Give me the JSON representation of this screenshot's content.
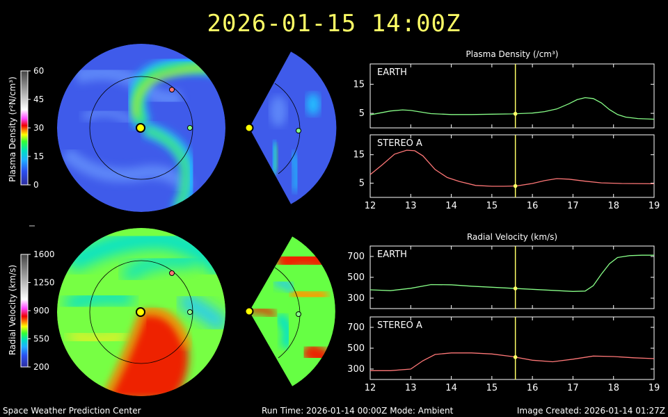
{
  "title": "2026-01-15 14:00Z",
  "footer": {
    "left": "Space Weather Prediction Center",
    "middle": "Run Time: 2026-01-14 00:00Z  Mode: Ambient",
    "right": "Image Created: 2026-01-14 01:27Z"
  },
  "colors": {
    "title": "#ffff66",
    "earth_line": "#88ff88",
    "stereo_line": "#ff7777",
    "cursor": "#ffff66"
  },
  "density_bar": {
    "label": "Plasma Density (r²N/cm³)",
    "ticks": [
      "60",
      "45",
      "30",
      "15",
      "0"
    ]
  },
  "velocity_bar": {
    "label": "Radial Velocity (km/s)",
    "ticks": [
      "1600",
      "1250",
      "900",
      "550",
      "200"
    ]
  },
  "chart_data": [
    {
      "type": "line",
      "title": "Plasma Density (/cm³)",
      "panel": "EARTH",
      "x_ticks": [
        "12",
        "13",
        "14",
        "15",
        "16",
        "17",
        "18",
        "19"
      ],
      "y_ticks": [
        "15",
        "5"
      ],
      "xlim": [
        12,
        19
      ],
      "ylim": [
        0,
        22
      ],
      "cursor_x": 15.58,
      "x": [
        12.0,
        12.5,
        12.8,
        13.0,
        13.5,
        14.0,
        14.5,
        15.0,
        15.5,
        16.0,
        16.3,
        16.6,
        16.9,
        17.1,
        17.3,
        17.5,
        17.7,
        17.9,
        18.1,
        18.3,
        18.6,
        19.0
      ],
      "values": [
        4.5,
        5.8,
        6.2,
        6.0,
        4.9,
        4.6,
        4.6,
        4.7,
        4.8,
        5.1,
        5.6,
        6.5,
        8.3,
        9.7,
        10.4,
        10.1,
        8.6,
        6.3,
        4.6,
        3.7,
        3.2,
        3.0
      ]
    },
    {
      "type": "line",
      "panel": "STEREO A",
      "x_ticks": [
        "12",
        "13",
        "14",
        "15",
        "16",
        "17",
        "18",
        "19"
      ],
      "y_ticks": [
        "15",
        "5"
      ],
      "xlim": [
        12,
        19
      ],
      "ylim": [
        0,
        22
      ],
      "cursor_x": 15.58,
      "x": [
        12.0,
        12.3,
        12.6,
        12.9,
        13.1,
        13.3,
        13.6,
        13.9,
        14.2,
        14.6,
        15.0,
        15.3,
        15.6,
        16.0,
        16.3,
        16.6,
        16.9,
        17.3,
        17.7,
        18.2,
        19.0
      ],
      "values": [
        8.0,
        11.5,
        15.2,
        16.6,
        16.4,
        14.6,
        9.8,
        7.0,
        5.6,
        4.2,
        3.9,
        3.9,
        4.0,
        4.9,
        5.9,
        6.6,
        6.4,
        5.7,
        5.1,
        4.9,
        4.8
      ]
    },
    {
      "type": "line",
      "title": "Radial Velocity (km/s)",
      "panel": "EARTH",
      "x_ticks": [
        "12",
        "13",
        "14",
        "15",
        "16",
        "17",
        "18",
        "19"
      ],
      "y_ticks": [
        "700",
        "500",
        "300"
      ],
      "xlim": [
        12,
        19
      ],
      "ylim": [
        200,
        800
      ],
      "cursor_x": 15.58,
      "x": [
        12.0,
        12.5,
        13.0,
        13.5,
        14.0,
        14.5,
        15.0,
        15.5,
        16.0,
        16.5,
        17.0,
        17.3,
        17.5,
        17.7,
        17.9,
        18.1,
        18.4,
        18.7,
        19.0
      ],
      "values": [
        380,
        372,
        395,
        430,
        428,
        415,
        405,
        395,
        385,
        375,
        365,
        368,
        420,
        530,
        630,
        690,
        708,
        712,
        712
      ]
    },
    {
      "type": "line",
      "panel": "STEREO A",
      "x_ticks": [
        "12",
        "13",
        "14",
        "15",
        "16",
        "17",
        "18",
        "19"
      ],
      "y_ticks": [
        "700",
        "500",
        "300"
      ],
      "xlim": [
        12,
        19
      ],
      "ylim": [
        200,
        800
      ],
      "cursor_x": 15.58,
      "x": [
        12.0,
        12.5,
        13.0,
        13.3,
        13.6,
        14.0,
        14.5,
        15.0,
        15.5,
        16.0,
        16.5,
        17.0,
        17.5,
        18.0,
        18.5,
        19.0
      ],
      "values": [
        285,
        285,
        300,
        380,
        440,
        455,
        455,
        445,
        420,
        385,
        370,
        395,
        425,
        420,
        408,
        400
      ]
    }
  ]
}
